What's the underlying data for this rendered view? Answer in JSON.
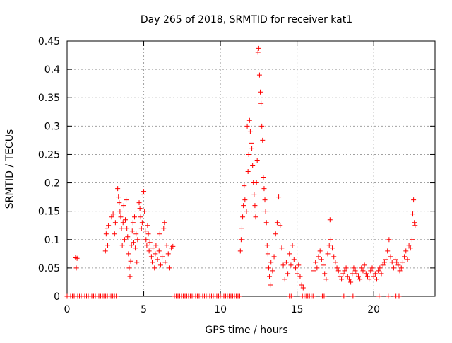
{
  "chart_data": {
    "type": "scatter",
    "title": "Day 265 of 2018, SRMTID for receiver kat1",
    "xlabel": "GPS time / hours",
    "ylabel": "SRMTID / TECUs",
    "xlim": [
      0,
      24
    ],
    "ylim": [
      0,
      0.45
    ],
    "xticks": [
      0,
      5,
      10,
      15,
      20
    ],
    "yticks": [
      0,
      0.05,
      0.1,
      0.15,
      0.2,
      0.25,
      0.3,
      0.35,
      0.4,
      0.45
    ],
    "xtick_labels": [
      "0",
      "5",
      "10",
      "15",
      "20"
    ],
    "ytick_labels": [
      "0",
      "0.05",
      "0.1",
      "0.15",
      "0.2",
      "0.25",
      "0.3",
      "0.35",
      "0.4",
      "0.45"
    ],
    "grid": true,
    "marker": "+",
    "series": [
      {
        "name": "SRMTID",
        "color": "#ff0000",
        "points": [
          [
            0.55,
            0.068
          ],
          [
            0.6,
            0.05
          ],
          [
            0.65,
            0.067
          ],
          [
            2.5,
            0.08
          ],
          [
            2.55,
            0.11
          ],
          [
            2.6,
            0.12
          ],
          [
            2.65,
            0.09
          ],
          [
            2.7,
            0.125
          ],
          [
            2.9,
            0.14
          ],
          [
            3.0,
            0.145
          ],
          [
            3.1,
            0.11
          ],
          [
            3.15,
            0.13
          ],
          [
            3.3,
            0.19
          ],
          [
            3.35,
            0.175
          ],
          [
            3.4,
            0.165
          ],
          [
            3.45,
            0.15
          ],
          [
            3.5,
            0.14
          ],
          [
            3.55,
            0.12
          ],
          [
            3.6,
            0.09
          ],
          [
            3.65,
            0.13
          ],
          [
            3.7,
            0.16
          ],
          [
            3.75,
            0.1
          ],
          [
            3.8,
            0.135
          ],
          [
            3.85,
            0.17
          ],
          [
            3.9,
            0.12
          ],
          [
            3.95,
            0.105
          ],
          [
            4.0,
            0.075
          ],
          [
            4.05,
            0.05
          ],
          [
            4.1,
            0.035
          ],
          [
            4.15,
            0.062
          ],
          [
            4.2,
            0.09
          ],
          [
            4.25,
            0.115
          ],
          [
            4.3,
            0.13
          ],
          [
            4.35,
            0.095
          ],
          [
            4.4,
            0.14
          ],
          [
            4.45,
            0.085
          ],
          [
            4.5,
            0.11
          ],
          [
            4.55,
            0.06
          ],
          [
            4.6,
            0.1
          ],
          [
            4.7,
            0.165
          ],
          [
            4.75,
            0.155
          ],
          [
            4.8,
            0.14
          ],
          [
            4.85,
            0.12
          ],
          [
            4.9,
            0.13
          ],
          [
            4.95,
            0.18
          ],
          [
            5.0,
            0.185
          ],
          [
            5.05,
            0.15
          ],
          [
            5.1,
            0.115
          ],
          [
            5.15,
            0.1
          ],
          [
            5.2,
            0.09
          ],
          [
            5.25,
            0.125
          ],
          [
            5.3,
            0.11
          ],
          [
            5.35,
            0.08
          ],
          [
            5.4,
            0.095
          ],
          [
            5.5,
            0.07
          ],
          [
            5.55,
            0.06
          ],
          [
            5.6,
            0.085
          ],
          [
            5.7,
            0.05
          ],
          [
            5.75,
            0.075
          ],
          [
            5.8,
            0.09
          ],
          [
            5.9,
            0.065
          ],
          [
            6.0,
            0.08
          ],
          [
            6.05,
            0.11
          ],
          [
            6.1,
            0.055
          ],
          [
            6.2,
            0.07
          ],
          [
            6.3,
            0.12
          ],
          [
            6.35,
            0.13
          ],
          [
            6.4,
            0.06
          ],
          [
            6.5,
            0.09
          ],
          [
            6.6,
            0.075
          ],
          [
            6.7,
            0.05
          ],
          [
            6.8,
            0.085
          ],
          [
            6.9,
            0.088
          ],
          [
            11.3,
            0.08
          ],
          [
            11.35,
            0.1
          ],
          [
            11.4,
            0.12
          ],
          [
            11.45,
            0.14
          ],
          [
            11.5,
            0.16
          ],
          [
            11.55,
            0.195
          ],
          [
            11.6,
            0.17
          ],
          [
            11.7,
            0.15
          ],
          [
            11.75,
            0.3
          ],
          [
            11.8,
            0.22
          ],
          [
            11.85,
            0.25
          ],
          [
            11.9,
            0.31
          ],
          [
            11.95,
            0.29
          ],
          [
            12.0,
            0.27
          ],
          [
            12.05,
            0.26
          ],
          [
            12.1,
            0.23
          ],
          [
            12.15,
            0.2
          ],
          [
            12.2,
            0.18
          ],
          [
            12.25,
            0.16
          ],
          [
            12.3,
            0.14
          ],
          [
            12.35,
            0.2
          ],
          [
            12.4,
            0.24
          ],
          [
            12.45,
            0.43
          ],
          [
            12.5,
            0.437
          ],
          [
            12.55,
            0.39
          ],
          [
            12.6,
            0.36
          ],
          [
            12.65,
            0.34
          ],
          [
            12.7,
            0.3
          ],
          [
            12.75,
            0.275
          ],
          [
            12.8,
            0.21
          ],
          [
            12.85,
            0.19
          ],
          [
            12.9,
            0.17
          ],
          [
            12.95,
            0.15
          ],
          [
            13.0,
            0.13
          ],
          [
            13.05,
            0.09
          ],
          [
            13.1,
            0.075
          ],
          [
            13.15,
            0.05
          ],
          [
            13.2,
            0.035
          ],
          [
            13.25,
            0.02
          ],
          [
            13.3,
            0.06
          ],
          [
            13.4,
            0.045
          ],
          [
            13.5,
            0.07
          ],
          [
            13.6,
            0.11
          ],
          [
            13.7,
            0.13
          ],
          [
            13.8,
            0.175
          ],
          [
            13.9,
            0.125
          ],
          [
            14.0,
            0.085
          ],
          [
            14.1,
            0.055
          ],
          [
            14.2,
            0.03
          ],
          [
            14.3,
            0.06
          ],
          [
            14.4,
            0.04
          ],
          [
            14.5,
            0.075
          ],
          [
            14.6,
            0.055
          ],
          [
            14.7,
            0.09
          ],
          [
            14.8,
            0.065
          ],
          [
            14.9,
            0.05
          ],
          [
            15.0,
            0.04
          ],
          [
            15.1,
            0.055
          ],
          [
            15.2,
            0.035
          ],
          [
            15.3,
            0.02
          ],
          [
            15.4,
            0.015
          ],
          [
            16.1,
            0.045
          ],
          [
            16.2,
            0.06
          ],
          [
            16.3,
            0.05
          ],
          [
            16.4,
            0.07
          ],
          [
            16.5,
            0.08
          ],
          [
            16.6,
            0.065
          ],
          [
            16.7,
            0.055
          ],
          [
            16.8,
            0.04
          ],
          [
            16.9,
            0.03
          ],
          [
            17.0,
            0.075
          ],
          [
            17.1,
            0.09
          ],
          [
            17.15,
            0.135
          ],
          [
            17.2,
            0.1
          ],
          [
            17.3,
            0.085
          ],
          [
            17.4,
            0.07
          ],
          [
            17.5,
            0.06
          ],
          [
            17.6,
            0.05
          ],
          [
            17.7,
            0.045
          ],
          [
            17.8,
            0.035
          ],
          [
            17.9,
            0.03
          ],
          [
            18.0,
            0.04
          ],
          [
            18.1,
            0.045
          ],
          [
            18.2,
            0.05
          ],
          [
            18.3,
            0.035
          ],
          [
            18.4,
            0.03
          ],
          [
            18.5,
            0.025
          ],
          [
            18.6,
            0.04
          ],
          [
            18.7,
            0.05
          ],
          [
            18.8,
            0.045
          ],
          [
            18.9,
            0.04
          ],
          [
            19.0,
            0.035
          ],
          [
            19.1,
            0.03
          ],
          [
            19.2,
            0.05
          ],
          [
            19.3,
            0.045
          ],
          [
            19.4,
            0.055
          ],
          [
            19.5,
            0.04
          ],
          [
            19.6,
            0.035
          ],
          [
            19.7,
            0.03
          ],
          [
            19.8,
            0.045
          ],
          [
            19.9,
            0.05
          ],
          [
            20.0,
            0.035
          ],
          [
            20.1,
            0.04
          ],
          [
            20.2,
            0.03
          ],
          [
            20.3,
            0.045
          ],
          [
            20.4,
            0.05
          ],
          [
            20.5,
            0.04
          ],
          [
            20.6,
            0.055
          ],
          [
            20.7,
            0.06
          ],
          [
            20.8,
            0.065
          ],
          [
            20.9,
            0.08
          ],
          [
            21.0,
            0.1
          ],
          [
            21.1,
            0.07
          ],
          [
            21.2,
            0.06
          ],
          [
            21.3,
            0.05
          ],
          [
            21.4,
            0.065
          ],
          [
            21.5,
            0.06
          ],
          [
            21.6,
            0.055
          ],
          [
            21.7,
            0.045
          ],
          [
            21.8,
            0.05
          ],
          [
            21.9,
            0.06
          ],
          [
            22.0,
            0.07
          ],
          [
            22.1,
            0.08
          ],
          [
            22.2,
            0.065
          ],
          [
            22.3,
            0.09
          ],
          [
            22.4,
            0.085
          ],
          [
            22.5,
            0.1
          ],
          [
            22.55,
            0.145
          ],
          [
            22.6,
            0.17
          ],
          [
            22.65,
            0.13
          ],
          [
            22.7,
            0.125
          ]
        ],
        "zero_segments": [
          [
            0,
            2.4
          ],
          [
            2.4,
            3.3
          ],
          [
            7.0,
            11.3
          ],
          [
            14.5,
            14.65
          ],
          [
            15.35,
            16.1
          ],
          [
            16.65,
            16.85
          ],
          [
            18.05,
            18.15
          ],
          [
            18.65,
            18.75
          ],
          [
            20.35,
            20.45
          ],
          [
            20.95,
            21.05
          ],
          [
            21.45,
            21.55
          ],
          [
            21.65,
            21.75
          ]
        ]
      }
    ]
  }
}
